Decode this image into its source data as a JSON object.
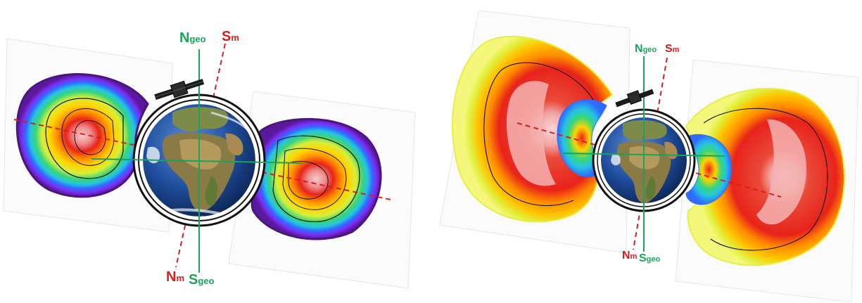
{
  "colors": {
    "geo_axis": "#1aa35a",
    "mag_axis": "#d61e1e",
    "belt_palette": [
      "#5a189a",
      "#7b2ff7",
      "#2f6bff",
      "#27c4e0",
      "#37d67a",
      "#d7ef3a",
      "#ffd400",
      "#ff8a00",
      "#e8231a",
      "#f07a7a",
      "#f6c1c1"
    ]
  },
  "panels": [
    {
      "id": "left",
      "labels": {
        "n_geo": {
          "main": "N",
          "sub": "geo"
        },
        "s_geo": {
          "main": "S",
          "sub": "geo"
        },
        "s_m": {
          "main": "S",
          "sub": "m"
        },
        "n_m": {
          "main": "N",
          "sub": "m"
        }
      }
    },
    {
      "id": "right",
      "labels": {
        "n_geo": {
          "main": "N",
          "sub": "geo"
        },
        "s_geo": {
          "main": "S",
          "sub": "geo"
        },
        "s_m": {
          "main": "S",
          "sub": "m"
        },
        "n_m": {
          "main": "N",
          "sub": "m"
        }
      }
    }
  ],
  "icons": [
    "satellite-icon",
    "earth-globe-icon"
  ]
}
